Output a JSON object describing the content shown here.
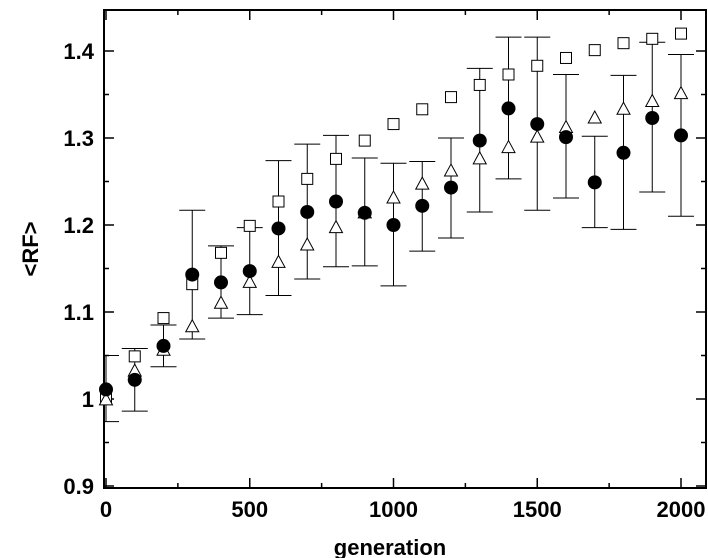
{
  "chart_data": {
    "type": "scatter",
    "xlabel": "generation",
    "ylabel": "<RF>",
    "xlim": [
      0,
      2000
    ],
    "ylim": [
      0.9,
      1.45
    ],
    "x_ticks": [
      0,
      500,
      1000,
      1500,
      2000
    ],
    "x_tick_labels": [
      "0",
      "500",
      "1000",
      "1500",
      "2000"
    ],
    "y_ticks": [
      0.9,
      1.0,
      1.1,
      1.2,
      1.3,
      1.4
    ],
    "y_tick_labels": [
      "0.9",
      "1",
      "1.1",
      "1.2",
      "1.3",
      "1.4"
    ],
    "grid": false,
    "series": [
      {
        "marker": "filled-circle",
        "x": [
          0,
          100,
          200,
          300,
          400,
          500,
          600,
          700,
          800,
          900,
          1000,
          1100,
          1200,
          1300,
          1400,
          1500,
          1600,
          1700,
          1800,
          1900,
          2000
        ],
        "y": [
          1.011,
          1.022,
          1.061,
          1.143,
          1.134,
          1.147,
          1.196,
          1.215,
          1.227,
          1.214,
          1.2,
          1.222,
          1.243,
          1.297,
          1.334,
          1.316,
          1.301,
          1.249,
          1.283,
          1.323,
          1.303
        ],
        "err_low": [
          0.974,
          0.986,
          1.037,
          1.069,
          1.093,
          1.097,
          1.119,
          1.138,
          1.152,
          1.153,
          1.13,
          1.17,
          1.185,
          1.215,
          1.253,
          1.217,
          1.231,
          1.197,
          1.195,
          1.238,
          1.21
        ],
        "err_high": [
          1.05,
          1.058,
          1.085,
          1.217,
          1.176,
          1.197,
          1.274,
          1.293,
          1.303,
          1.277,
          1.271,
          1.273,
          1.3,
          1.38,
          1.416,
          1.416,
          1.373,
          1.302,
          1.372,
          1.41,
          1.396
        ]
      },
      {
        "marker": "open-square",
        "x": [
          0,
          100,
          200,
          300,
          400,
          500,
          600,
          700,
          800,
          900,
          1000,
          1100,
          1200,
          1300,
          1400,
          1500,
          1600,
          1700,
          1800,
          1900,
          2000
        ],
        "y": [
          1.002,
          1.049,
          1.093,
          1.132,
          1.168,
          1.199,
          1.227,
          1.253,
          1.276,
          1.297,
          1.316,
          1.333,
          1.347,
          1.361,
          1.373,
          1.383,
          1.392,
          1.401,
          1.409,
          1.414,
          1.42
        ]
      },
      {
        "marker": "open-triangle",
        "x": [
          0,
          100,
          200,
          300,
          400,
          500,
          600,
          700,
          800,
          900,
          1000,
          1100,
          1200,
          1300,
          1400,
          1500,
          1600,
          1700,
          1800,
          1900,
          2000
        ],
        "y": [
          0.999,
          1.032,
          1.056,
          1.083,
          1.11,
          1.134,
          1.157,
          1.177,
          1.197,
          1.214,
          1.231,
          1.247,
          1.262,
          1.276,
          1.289,
          1.301,
          1.312,
          1.323,
          1.333,
          1.342,
          1.351
        ]
      }
    ]
  }
}
